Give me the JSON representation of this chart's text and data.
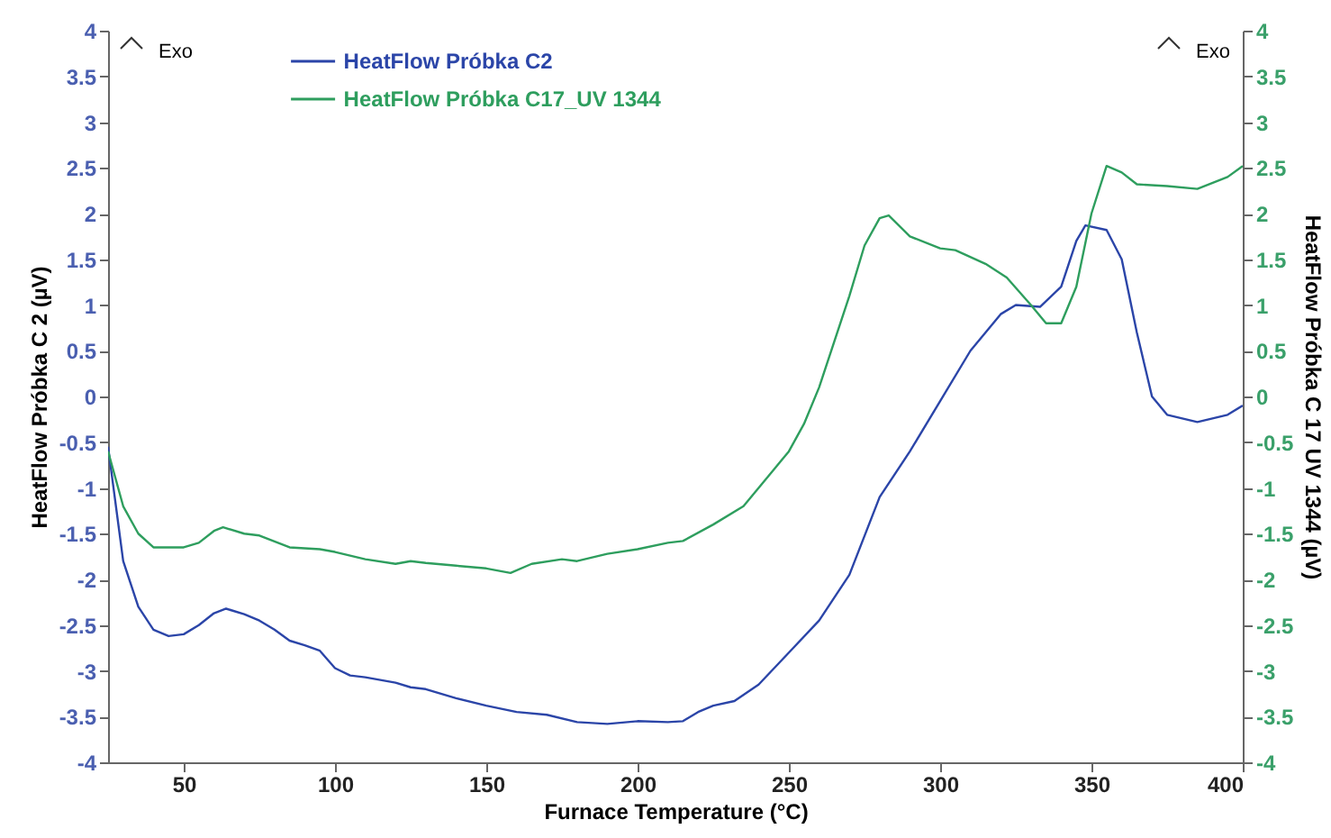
{
  "chart_data": {
    "type": "line",
    "xlabel": "Furnace Temperature (°C)",
    "ylabel": "HeatFlow Próbka C 2 (µV)",
    "y2label": "HeatFlow  Próbka C 17  UV 1344  (µV)",
    "annotations": [
      "Exo",
      "Exo"
    ],
    "xlim": [
      25,
      400
    ],
    "xticks": [
      50,
      100,
      150,
      200,
      250,
      300,
      350,
      400
    ],
    "ylim": [
      -4,
      4
    ],
    "yticks": [
      -4,
      -3.5,
      -3,
      -2.5,
      -2,
      -1.5,
      -1,
      -0.5,
      0,
      0.5,
      1,
      1.5,
      2,
      2.5,
      3,
      3.5,
      4
    ],
    "y2lim": [
      -4,
      4
    ],
    "y2ticks": [
      -4,
      -3.5,
      -3,
      -2.5,
      -2,
      -1.5,
      -1,
      -0.5,
      0,
      0.5,
      1,
      1.5,
      2,
      2.5,
      3,
      3.5,
      4
    ],
    "grid": false,
    "legend": "top",
    "series": [
      {
        "name": "HeatFlow Próbka C2",
        "color": "#2b45a8",
        "x": [
          25,
          30,
          35,
          40,
          45,
          50,
          55,
          60,
          64,
          70,
          75,
          80,
          85,
          90,
          95,
          100,
          105,
          110,
          120,
          125,
          130,
          140,
          150,
          160,
          170,
          180,
          190,
          200,
          210,
          215,
          220,
          225,
          232,
          240,
          250,
          260,
          270,
          280,
          290,
          300,
          310,
          320,
          325,
          333,
          340,
          345,
          348,
          355,
          360,
          365,
          370,
          375,
          385,
          395,
          400
        ],
        "values": [
          -0.55,
          -1.8,
          -2.3,
          -2.55,
          -2.62,
          -2.6,
          -2.5,
          -2.37,
          -2.32,
          -2.38,
          -2.45,
          -2.55,
          -2.67,
          -2.72,
          -2.78,
          -2.97,
          -3.05,
          -3.07,
          -3.13,
          -3.18,
          -3.2,
          -3.3,
          -3.38,
          -3.45,
          -3.48,
          -3.56,
          -3.58,
          -3.55,
          -3.56,
          -3.55,
          -3.45,
          -3.38,
          -3.33,
          -3.15,
          -2.8,
          -2.45,
          -1.95,
          -1.1,
          -0.6,
          -0.05,
          0.5,
          0.9,
          1.0,
          0.98,
          1.2,
          1.7,
          1.87,
          1.82,
          1.5,
          0.7,
          0,
          -0.2,
          -0.28,
          -0.2,
          -0.1
        ]
      },
      {
        "name": "HeatFlow  Próbka C17_UV 1344",
        "color": "#2e9e5e",
        "axis": "y2",
        "x": [
          25,
          30,
          35,
          40,
          50,
          55,
          60,
          63,
          70,
          75,
          85,
          95,
          100,
          110,
          120,
          125,
          130,
          140,
          150,
          158,
          165,
          175,
          180,
          190,
          200,
          210,
          215,
          225,
          235,
          245,
          250,
          255,
          260,
          265,
          270,
          275,
          280,
          283,
          290,
          300,
          305,
          315,
          322,
          330,
          335,
          340,
          345,
          350,
          355,
          360,
          365,
          375,
          385,
          395,
          400
        ],
        "values": [
          -0.6,
          -1.2,
          -1.5,
          -1.65,
          -1.65,
          -1.6,
          -1.47,
          -1.43,
          -1.5,
          -1.52,
          -1.65,
          -1.67,
          -1.7,
          -1.78,
          -1.83,
          -1.8,
          -1.82,
          -1.85,
          -1.88,
          -1.93,
          -1.83,
          -1.78,
          -1.8,
          -1.72,
          -1.67,
          -1.6,
          -1.58,
          -1.4,
          -1.2,
          -0.8,
          -0.6,
          -0.3,
          0.1,
          0.6,
          1.1,
          1.65,
          1.95,
          1.98,
          1.75,
          1.62,
          1.6,
          1.45,
          1.3,
          1.0,
          0.8,
          0.8,
          1.2,
          2.0,
          2.52,
          2.45,
          2.32,
          2.3,
          2.27,
          2.4,
          2.52
        ]
      }
    ]
  }
}
